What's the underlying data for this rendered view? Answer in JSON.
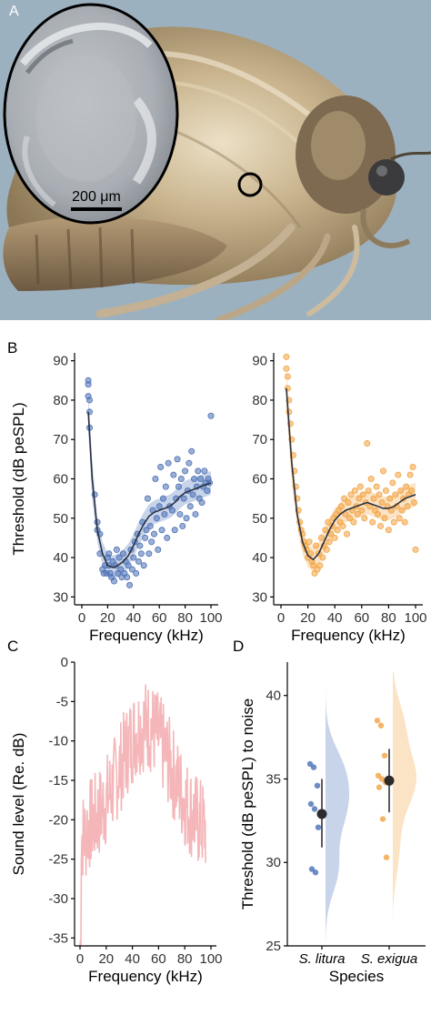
{
  "panels": {
    "a": {
      "label": "A",
      "scale_bar_label": "200 μm"
    },
    "b": {
      "label": "B"
    },
    "c": {
      "label": "C"
    },
    "d": {
      "label": "D"
    }
  },
  "chart_data": [
    {
      "id": "b-left",
      "type": "scatter",
      "xlabel": "Frequency (kHz)",
      "ylabel": "Threshold (dB peSPL)",
      "xlim": [
        0,
        100
      ],
      "ylim": [
        28,
        92
      ],
      "xticks": [
        0,
        20,
        40,
        60,
        80,
        100
      ],
      "yticks": [
        30,
        40,
        50,
        60,
        70,
        80,
        90
      ],
      "color": "#4a6fb5",
      "points": [
        [
          5,
          85
        ],
        [
          5,
          84
        ],
        [
          5,
          81
        ],
        [
          6,
          80
        ],
        [
          6,
          77
        ],
        [
          6,
          73
        ],
        [
          10,
          56
        ],
        [
          12,
          49
        ],
        [
          12,
          47
        ],
        [
          14,
          46
        ],
        [
          14,
          41
        ],
        [
          16,
          37
        ],
        [
          17,
          36
        ],
        [
          18,
          38
        ],
        [
          19,
          36
        ],
        [
          20,
          40
        ],
        [
          21,
          41
        ],
        [
          21,
          38
        ],
        [
          22,
          36
        ],
        [
          23,
          35
        ],
        [
          24,
          39
        ],
        [
          25,
          34
        ],
        [
          26,
          38
        ],
        [
          27,
          42
        ],
        [
          28,
          36
        ],
        [
          29,
          40
        ],
        [
          30,
          37
        ],
        [
          31,
          35
        ],
        [
          32,
          41
        ],
        [
          33,
          36
        ],
        [
          34,
          39
        ],
        [
          35,
          35
        ],
        [
          36,
          38
        ],
        [
          37,
          33
        ],
        [
          38,
          42
        ],
        [
          39,
          37
        ],
        [
          40,
          40
        ],
        [
          41,
          44
        ],
        [
          42,
          36
        ],
        [
          43,
          46
        ],
        [
          44,
          39
        ],
        [
          45,
          43
        ],
        [
          46,
          41
        ],
        [
          47,
          49
        ],
        [
          48,
          38
        ],
        [
          49,
          45
        ],
        [
          50,
          47
        ],
        [
          51,
          55
        ],
        [
          52,
          41
        ],
        [
          53,
          48
        ],
        [
          54,
          44
        ],
        [
          55,
          52
        ],
        [
          56,
          46
        ],
        [
          57,
          60
        ],
        [
          58,
          50
        ],
        [
          59,
          42
        ],
        [
          60,
          53
        ],
        [
          61,
          63
        ],
        [
          62,
          47
        ],
        [
          63,
          55
        ],
        [
          64,
          51
        ],
        [
          65,
          58
        ],
        [
          66,
          45
        ],
        [
          67,
          64
        ],
        [
          68,
          53
        ],
        [
          70,
          52
        ],
        [
          71,
          61
        ],
        [
          72,
          47
        ],
        [
          73,
          55
        ],
        [
          74,
          65
        ],
        [
          75,
          58
        ],
        [
          76,
          51
        ],
        [
          77,
          60
        ],
        [
          78,
          48
        ],
        [
          79,
          55
        ],
        [
          80,
          62
        ],
        [
          81,
          50
        ],
        [
          82,
          57
        ],
        [
          83,
          64
        ],
        [
          84,
          53
        ],
        [
          85,
          67
        ],
        [
          86,
          56
        ],
        [
          87,
          60
        ],
        [
          88,
          51
        ],
        [
          89,
          58
        ],
        [
          90,
          62
        ],
        [
          91,
          55
        ],
        [
          92,
          60
        ],
        [
          93,
          54
        ],
        [
          94,
          58
        ],
        [
          95,
          62
        ],
        [
          96,
          59
        ],
        [
          97,
          57
        ],
        [
          98,
          60
        ],
        [
          99,
          59
        ],
        [
          100,
          76
        ]
      ],
      "fit": [
        [
          5,
          77
        ],
        [
          8,
          60
        ],
        [
          12,
          47
        ],
        [
          16,
          41
        ],
        [
          20,
          38
        ],
        [
          24,
          37.5
        ],
        [
          28,
          38
        ],
        [
          32,
          39
        ],
        [
          36,
          40.5
        ],
        [
          40,
          43
        ],
        [
          44,
          46
        ],
        [
          48,
          48.5
        ],
        [
          52,
          50.5
        ],
        [
          56,
          51.5
        ],
        [
          60,
          52
        ],
        [
          64,
          52.5
        ],
        [
          68,
          53
        ],
        [
          72,
          54
        ],
        [
          76,
          55.5
        ],
        [
          80,
          56.5
        ],
        [
          84,
          57
        ],
        [
          88,
          57.5
        ],
        [
          92,
          58
        ],
        [
          96,
          58.5
        ],
        [
          100,
          59
        ]
      ]
    },
    {
      "id": "b-right",
      "type": "scatter",
      "xlabel": "Frequency (kHz)",
      "xlim": [
        0,
        100
      ],
      "ylim": [
        28,
        92
      ],
      "xticks": [
        0,
        20,
        40,
        60,
        80,
        100
      ],
      "yticks": [
        30,
        40,
        50,
        60,
        70,
        80,
        90
      ],
      "color": "#f2a340",
      "points": [
        [
          4,
          91
        ],
        [
          4,
          88
        ],
        [
          5,
          86
        ],
        [
          5,
          83
        ],
        [
          6,
          80
        ],
        [
          6,
          77
        ],
        [
          7,
          74
        ],
        [
          8,
          70
        ],
        [
          9,
          66
        ],
        [
          10,
          62
        ],
        [
          11,
          58
        ],
        [
          12,
          55
        ],
        [
          13,
          52
        ],
        [
          14,
          49
        ],
        [
          15,
          47
        ],
        [
          16,
          46
        ],
        [
          17,
          44
        ],
        [
          18,
          43
        ],
        [
          19,
          42
        ],
        [
          20,
          40
        ],
        [
          21,
          44
        ],
        [
          22,
          41
        ],
        [
          23,
          39
        ],
        [
          24,
          38
        ],
        [
          25,
          36
        ],
        [
          26,
          43
        ],
        [
          27,
          37
        ],
        [
          28,
          41
        ],
        [
          29,
          38
        ],
        [
          30,
          45
        ],
        [
          31,
          40
        ],
        [
          32,
          43
        ],
        [
          33,
          47
        ],
        [
          34,
          42
        ],
        [
          35,
          49
        ],
        [
          36,
          44
        ],
        [
          37,
          46
        ],
        [
          38,
          48
        ],
        [
          39,
          50
        ],
        [
          40,
          45
        ],
        [
          41,
          51
        ],
        [
          42,
          47
        ],
        [
          43,
          52
        ],
        [
          44,
          49
        ],
        [
          45,
          53
        ],
        [
          46,
          48
        ],
        [
          47,
          55
        ],
        [
          48,
          51
        ],
        [
          49,
          46
        ],
        [
          50,
          54
        ],
        [
          51,
          50
        ],
        [
          52,
          56
        ],
        [
          53,
          52
        ],
        [
          54,
          49
        ],
        [
          55,
          57
        ],
        [
          56,
          53
        ],
        [
          57,
          51
        ],
        [
          58,
          55
        ],
        [
          59,
          58
        ],
        [
          60,
          52
        ],
        [
          61,
          56
        ],
        [
          62,
          50
        ],
        [
          63,
          54
        ],
        [
          64,
          69
        ],
        [
          65,
          57
        ],
        [
          66,
          53
        ],
        [
          67,
          60
        ],
        [
          68,
          49
        ],
        [
          69,
          55
        ],
        [
          70,
          52
        ],
        [
          71,
          58
        ],
        [
          72,
          51
        ],
        [
          73,
          56
        ],
        [
          74,
          48
        ],
        [
          75,
          54
        ],
        [
          76,
          62
        ],
        [
          77,
          50
        ],
        [
          78,
          57
        ],
        [
          79,
          53
        ],
        [
          80,
          47
        ],
        [
          81,
          55
        ],
        [
          82,
          52
        ],
        [
          83,
          59
        ],
        [
          84,
          49
        ],
        [
          85,
          56
        ],
        [
          86,
          53
        ],
        [
          87,
          61
        ],
        [
          88,
          50
        ],
        [
          89,
          57
        ],
        [
          90,
          52
        ],
        [
          91,
          55
        ],
        [
          92,
          49
        ],
        [
          93,
          58
        ],
        [
          94,
          53
        ],
        [
          95,
          56
        ],
        [
          96,
          61
        ],
        [
          97,
          57
        ],
        [
          98,
          63
        ],
        [
          99,
          54
        ],
        [
          100,
          42
        ]
      ],
      "fit": [
        [
          4,
          83
        ],
        [
          8,
          64
        ],
        [
          12,
          51
        ],
        [
          16,
          44
        ],
        [
          20,
          40.5
        ],
        [
          24,
          39.5
        ],
        [
          28,
          41
        ],
        [
          32,
          44
        ],
        [
          36,
          47
        ],
        [
          40,
          49.5
        ],
        [
          44,
          51
        ],
        [
          48,
          52
        ],
        [
          52,
          52.5
        ],
        [
          56,
          53
        ],
        [
          60,
          53.5
        ],
        [
          64,
          54
        ],
        [
          68,
          53.5
        ],
        [
          72,
          53
        ],
        [
          76,
          52.5
        ],
        [
          80,
          52.5
        ],
        [
          84,
          53
        ],
        [
          88,
          54
        ],
        [
          92,
          55
        ],
        [
          96,
          55.5
        ],
        [
          100,
          56
        ]
      ]
    },
    {
      "id": "c",
      "type": "line",
      "xlabel": "Frequency (kHz)",
      "ylabel": "Sound level (Re. dB)",
      "xlim": [
        0,
        100
      ],
      "ylim": [
        -36,
        0
      ],
      "xticks": [
        0,
        20,
        40,
        60,
        80,
        100
      ],
      "yticks": [
        0,
        -5,
        -10,
        -15,
        -20,
        -25,
        -30,
        -35
      ],
      "color": "#f4b6b9"
    },
    {
      "id": "d",
      "type": "violin",
      "xlabel": "Species",
      "ylabel": "Threshold (dB peSPL) to noise",
      "ylim": [
        25,
        42
      ],
      "yticks": [
        25,
        30,
        35,
        40
      ],
      "categories": [
        "S. litura",
        "S. exigua"
      ],
      "series": [
        {
          "color": "#4a6fb5",
          "mean": 32.9,
          "ci": [
            30.9,
            35.0
          ],
          "points": [
            35.9,
            35.7,
            34.6,
            33.5,
            33.2,
            32.1,
            29.6,
            29.4
          ]
        },
        {
          "color": "#f2a340",
          "mean": 34.9,
          "ci": [
            33.0,
            36.8
          ],
          "points": [
            38.5,
            38.2,
            36.4,
            35.2,
            35.0,
            34.8,
            34.5,
            32.6,
            30.3
          ]
        }
      ]
    }
  ]
}
